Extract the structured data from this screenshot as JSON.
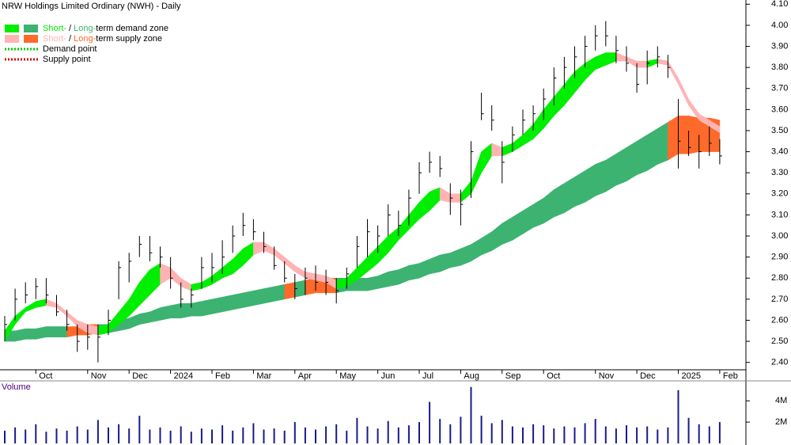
{
  "chart_data": {
    "type": "ohlc",
    "title": "NRW Holdings Limited Ordinary (NWH) - Daily",
    "categories": [
      null,
      null,
      null,
      "Oct",
      null,
      null,
      null,
      null,
      "Nov",
      null,
      null,
      null,
      "Dec",
      null,
      null,
      null,
      "2024",
      null,
      null,
      null,
      "Feb",
      null,
      null,
      null,
      "Mar",
      null,
      null,
      null,
      "Apr",
      null,
      null,
      null,
      "May",
      null,
      null,
      null,
      "Jun",
      null,
      null,
      null,
      "Jul",
      null,
      null,
      null,
      "Aug",
      null,
      null,
      null,
      "Sep",
      null,
      null,
      null,
      "Oct",
      null,
      null,
      null,
      null,
      "Nov",
      null,
      null,
      null,
      "Dec",
      null,
      null,
      null,
      "2025",
      null,
      null,
      null,
      "Feb"
    ],
    "high": [
      2.62,
      2.75,
      2.78,
      2.8,
      2.8,
      2.72,
      2.65,
      2.58,
      2.58,
      2.58,
      2.65,
      2.88,
      2.92,
      3.0,
      3.0,
      2.95,
      2.9,
      2.78,
      2.75,
      2.9,
      2.92,
      2.98,
      3.05,
      3.11,
      3.08,
      3.02,
      2.95,
      2.88,
      2.82,
      2.85,
      2.86,
      2.84,
      2.8,
      2.85,
      3.0,
      3.08,
      3.05,
      3.15,
      3.12,
      3.22,
      3.35,
      3.4,
      3.38,
      3.25,
      3.22,
      3.45,
      3.68,
      3.62,
      3.45,
      3.52,
      3.6,
      3.62,
      3.7,
      3.8,
      3.85,
      3.9,
      3.95,
      4.0,
      4.02,
      3.95,
      3.9,
      3.82,
      3.88,
      3.9,
      3.86,
      3.65,
      3.5,
      3.48,
      3.52,
      3.46
    ],
    "low": [
      2.5,
      2.6,
      2.68,
      2.7,
      2.68,
      2.62,
      2.55,
      2.45,
      2.46,
      2.4,
      2.53,
      2.7,
      2.78,
      2.9,
      2.88,
      2.85,
      2.75,
      2.66,
      2.66,
      2.75,
      2.78,
      2.82,
      2.92,
      3.0,
      2.98,
      2.92,
      2.84,
      2.78,
      2.7,
      2.72,
      2.74,
      2.72,
      2.68,
      2.75,
      2.85,
      2.9,
      2.92,
      3.0,
      3.0,
      3.05,
      3.2,
      3.3,
      3.28,
      3.1,
      3.05,
      3.18,
      3.55,
      3.5,
      3.25,
      3.4,
      3.48,
      3.5,
      3.55,
      3.62,
      3.7,
      3.75,
      3.8,
      3.88,
      3.9,
      3.82,
      3.78,
      3.68,
      3.72,
      3.8,
      3.75,
      3.32,
      3.38,
      3.32,
      3.38,
      3.34
    ],
    "close": [
      2.58,
      2.7,
      2.72,
      2.76,
      2.72,
      2.64,
      2.58,
      2.5,
      2.52,
      2.52,
      2.6,
      2.85,
      2.88,
      2.96,
      2.92,
      2.9,
      2.8,
      2.7,
      2.72,
      2.85,
      2.85,
      2.9,
      3.0,
      3.05,
      3.02,
      2.95,
      2.86,
      2.8,
      2.75,
      2.8,
      2.78,
      2.78,
      2.74,
      2.82,
      2.95,
      3.02,
      3.0,
      3.1,
      3.05,
      3.18,
      3.3,
      3.35,
      3.32,
      3.18,
      3.15,
      3.4,
      3.58,
      3.55,
      3.35,
      3.48,
      3.55,
      3.58,
      3.65,
      3.75,
      3.8,
      3.85,
      3.9,
      3.95,
      3.95,
      3.88,
      3.82,
      3.72,
      3.82,
      3.85,
      3.8,
      3.45,
      3.42,
      3.4,
      3.44,
      3.38
    ],
    "bar_color": "#000000",
    "short_zone": {
      "demand_color": "#00ee00",
      "supply_color": "#ffb3b3",
      "upper": [
        2.55,
        2.62,
        2.66,
        2.69,
        2.7,
        2.68,
        2.64,
        2.6,
        2.58,
        2.57,
        2.58,
        2.64,
        2.7,
        2.78,
        2.84,
        2.87,
        2.85,
        2.8,
        2.77,
        2.78,
        2.81,
        2.85,
        2.89,
        2.94,
        2.97,
        2.97,
        2.94,
        2.9,
        2.86,
        2.83,
        2.82,
        2.81,
        2.79,
        2.8,
        2.85,
        2.9,
        2.95,
        3.0,
        3.04,
        3.1,
        3.16,
        3.21,
        3.23,
        3.2,
        3.2,
        3.26,
        3.4,
        3.44,
        3.42,
        3.44,
        3.48,
        3.53,
        3.6,
        3.66,
        3.72,
        3.78,
        3.82,
        3.85,
        3.87,
        3.87,
        3.85,
        3.83,
        3.83,
        3.84,
        3.83,
        3.75,
        3.65,
        3.58,
        3.55,
        3.52
      ],
      "lower": [
        2.5,
        2.58,
        2.64,
        2.66,
        2.67,
        2.66,
        2.62,
        2.57,
        2.54,
        2.53,
        2.54,
        2.58,
        2.62,
        2.67,
        2.72,
        2.77,
        2.8,
        2.76,
        2.74,
        2.75,
        2.77,
        2.8,
        2.82,
        2.86,
        2.91,
        2.93,
        2.91,
        2.87,
        2.83,
        2.8,
        2.79,
        2.78,
        2.75,
        2.76,
        2.79,
        2.83,
        2.87,
        2.92,
        2.98,
        3.03,
        3.08,
        3.12,
        3.17,
        3.16,
        3.16,
        3.2,
        3.3,
        3.38,
        3.38,
        3.4,
        3.43,
        3.46,
        3.51,
        3.57,
        3.62,
        3.68,
        3.74,
        3.79,
        3.81,
        3.83,
        3.83,
        3.8,
        3.8,
        3.82,
        3.81,
        3.72,
        3.62,
        3.55,
        3.52,
        3.49
      ]
    },
    "long_zone": {
      "demand_color": "#3cb371",
      "supply_color": "#ff6a2a",
      "upper": [
        2.55,
        2.55,
        2.56,
        2.56,
        2.57,
        2.57,
        2.57,
        2.57,
        2.58,
        2.58,
        2.58,
        2.6,
        2.61,
        2.63,
        2.64,
        2.66,
        2.67,
        2.68,
        2.68,
        2.69,
        2.7,
        2.71,
        2.72,
        2.73,
        2.74,
        2.75,
        2.76,
        2.77,
        2.78,
        2.79,
        2.8,
        2.8,
        2.8,
        2.8,
        2.8,
        2.8,
        2.81,
        2.83,
        2.84,
        2.86,
        2.87,
        2.89,
        2.91,
        2.92,
        2.94,
        2.96,
        2.99,
        3.02,
        3.06,
        3.09,
        3.12,
        3.15,
        3.18,
        3.22,
        3.25,
        3.28,
        3.31,
        3.34,
        3.36,
        3.39,
        3.42,
        3.45,
        3.48,
        3.51,
        3.54,
        3.57,
        3.57,
        3.56,
        3.56,
        3.55
      ],
      "lower": [
        2.5,
        2.5,
        2.51,
        2.51,
        2.52,
        2.52,
        2.52,
        2.53,
        2.53,
        2.54,
        2.54,
        2.55,
        2.56,
        2.58,
        2.59,
        2.6,
        2.61,
        2.61,
        2.62,
        2.62,
        2.63,
        2.64,
        2.65,
        2.66,
        2.67,
        2.68,
        2.69,
        2.7,
        2.71,
        2.72,
        2.73,
        2.73,
        2.73,
        2.74,
        2.74,
        2.74,
        2.75,
        2.76,
        2.77,
        2.79,
        2.8,
        2.82,
        2.83,
        2.85,
        2.86,
        2.88,
        2.91,
        2.93,
        2.96,
        2.98,
        3.01,
        3.04,
        3.06,
        3.09,
        3.11,
        3.14,
        3.16,
        3.19,
        3.21,
        3.24,
        3.26,
        3.29,
        3.31,
        3.34,
        3.36,
        3.39,
        3.39,
        3.4,
        3.4,
        3.4
      ]
    },
    "ylim": [
      2.365,
      4.12
    ],
    "yticks": [
      {
        "value": 2.4,
        "label": "2.40"
      },
      {
        "value": 2.5,
        "label": "2.50"
      },
      {
        "value": 2.6,
        "label": "2.60"
      },
      {
        "value": 2.7,
        "label": "2.70"
      },
      {
        "value": 2.8,
        "label": "2.80"
      },
      {
        "value": 2.9,
        "label": "2.90"
      },
      {
        "value": 3.0,
        "label": "3.00"
      },
      {
        "value": 3.1,
        "label": "3.10"
      },
      {
        "value": 3.2,
        "label": "3.20"
      },
      {
        "value": 3.3,
        "label": "3.30"
      },
      {
        "value": 3.4,
        "label": "3.40"
      },
      {
        "value": 3.5,
        "label": "3.50"
      },
      {
        "value": 3.6,
        "label": "3.60"
      },
      {
        "value": 3.7,
        "label": "3.70"
      },
      {
        "value": 3.8,
        "label": "3.80"
      },
      {
        "value": 3.9,
        "label": "3.90"
      },
      {
        "value": 4.0,
        "label": "4.00"
      },
      {
        "value": 4.1,
        "label": "4.10"
      }
    ],
    "legend": [
      {
        "parts": [
          "Short-",
          " / ",
          "Long-",
          "term demand zone"
        ],
        "zone_color": "demand_color"
      },
      {
        "parts": [
          "Short-",
          " / ",
          "Long-",
          "term supply zone"
        ],
        "zone_color": "supply_color"
      },
      {
        "label": "Demand point",
        "color": "#00cc00"
      },
      {
        "label": "Supply point",
        "color": "#dd0000"
      }
    ],
    "volume": {
      "label": "Volume",
      "color": "#1a1a8c",
      "values": [
        1.2,
        1.5,
        1.3,
        1.8,
        1.1,
        1.4,
        1.2,
        1.6,
        1.3,
        2.2,
        1.5,
        1.8,
        1.4,
        2.6,
        1.3,
        1.5,
        1.2,
        1.6,
        1.1,
        1.4,
        1.3,
        1.7,
        1.2,
        1.5,
        1.9,
        1.3,
        1.4,
        1.2,
        2.0,
        1.5,
        1.3,
        1.6,
        1.8,
        1.2,
        2.4,
        1.6,
        1.4,
        2.1,
        1.5,
        1.7,
        2.0,
        3.9,
        2.3,
        1.8,
        2.5,
        5.3,
        2.6,
        1.9,
        2.2,
        1.6,
        1.5,
        1.8,
        1.7,
        1.4,
        1.6,
        1.5,
        1.9,
        2.3,
        1.6,
        1.4,
        1.7,
        1.5,
        1.6,
        1.3,
        1.5,
        5.0,
        2.4,
        1.8,
        1.6,
        2.0
      ],
      "ylim": [
        0,
        5.8
      ],
      "yticks": [
        {
          "value": 2,
          "label": "2M"
        },
        {
          "value": 4,
          "label": "4M"
        }
      ]
    }
  }
}
